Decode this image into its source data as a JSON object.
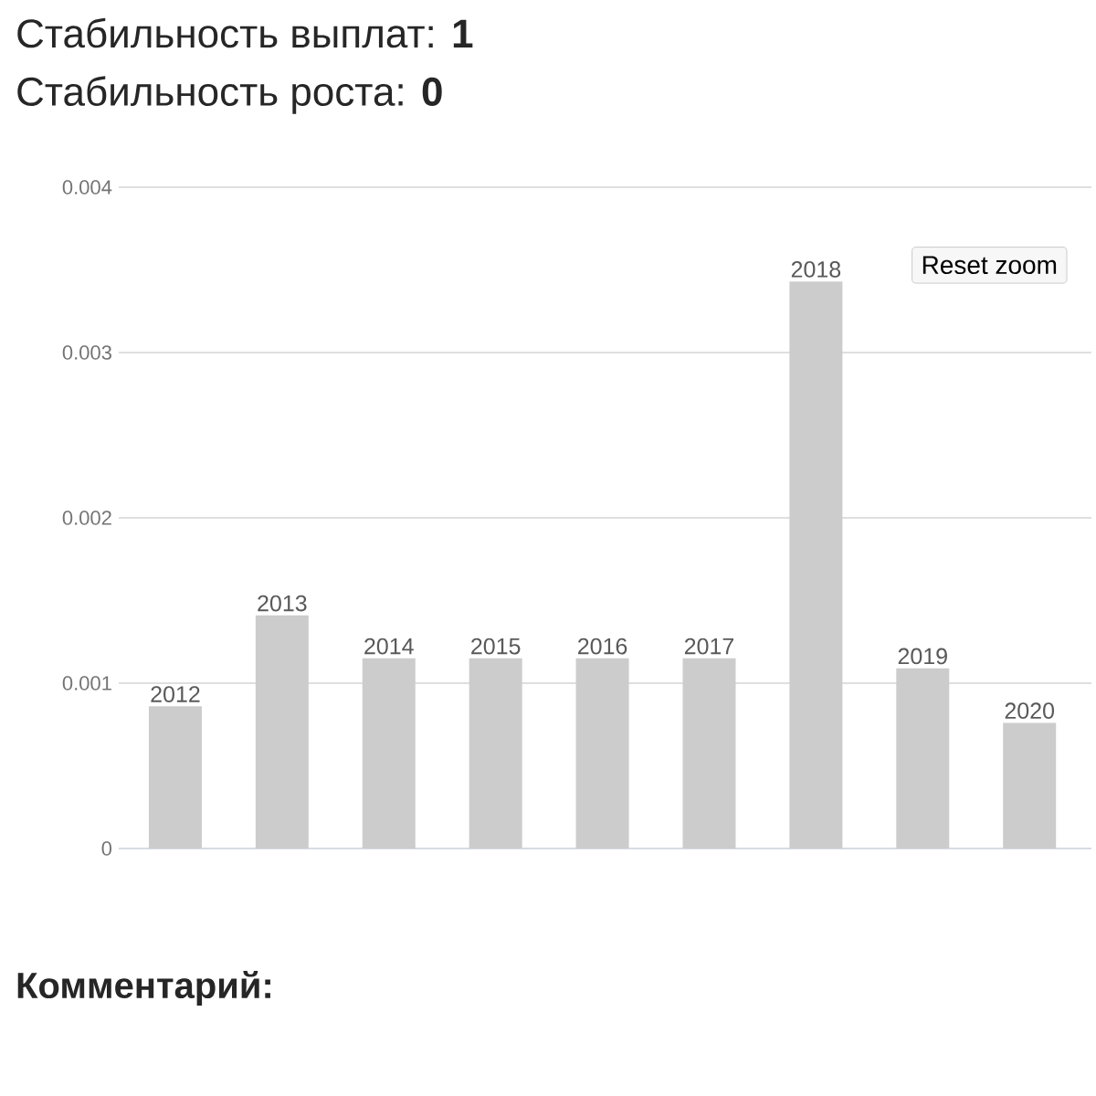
{
  "chart_data": {
    "type": "bar",
    "title": "Стабильность выплат: **1**",
    "subtitle": "Стабильность роста: **0**",
    "categories": [
      "2012",
      "2013",
      "2014",
      "2015",
      "2016",
      "2017",
      "2018",
      "2019",
      "2020"
    ],
    "values": [
      0.00086,
      0.00141,
      0.00115,
      0.00115,
      0.00115,
      0.00115,
      0.00343,
      0.00109,
      0.00076
    ],
    "color": "#cccccc",
    "ylim": [
      0,
      0.004
    ],
    "yticks": [
      0,
      0.001,
      0.002,
      0.003,
      0.004
    ],
    "grid": "y",
    "annotations": [
      "Reset zoom",
      "Комментарий:"
    ]
  }
}
